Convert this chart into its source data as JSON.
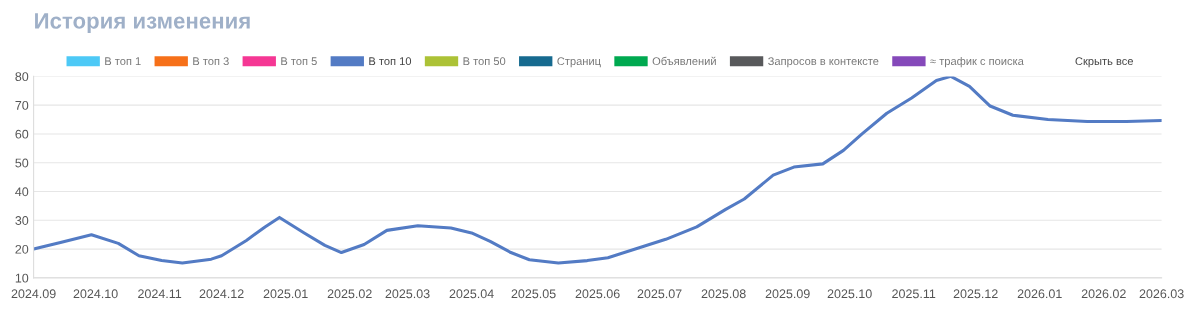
{
  "chart_data": {
    "type": "line",
    "title": "История изменения",
    "x": [
      "2024-09-01",
      "2024-09-14",
      "2024-09-29",
      "2024-10-12",
      "2024-10-22",
      "2024-11-02",
      "2024-11-12",
      "2024-11-26",
      "2024-12-01",
      "2024-12-13",
      "2024-12-22",
      "2024-12-29",
      "2025-01-10",
      "2025-01-20",
      "2025-01-28",
      "2025-02-08",
      "2025-02-19",
      "2025-03-06",
      "2025-03-22",
      "2025-04-01",
      "2025-04-10",
      "2025-04-20",
      "2025-04-29",
      "2025-05-13",
      "2025-05-27",
      "2025-06-06",
      "2025-06-20",
      "2025-07-04",
      "2025-07-19",
      "2025-08-02",
      "2025-08-11",
      "2025-08-25",
      "2025-09-04",
      "2025-09-18",
      "2025-09-28",
      "2025-10-07",
      "2025-10-19",
      "2025-10-31",
      "2025-11-12",
      "2025-11-19",
      "2025-11-28",
      "2025-12-08",
      "2025-12-19",
      "2026-01-05",
      "2026-01-24",
      "2026-02-12",
      "2026-03-01"
    ],
    "series": [
      {
        "name": "В топ 1",
        "color": "#4dc9f6",
        "values": [
          null,
          null,
          null,
          null,
          null,
          null,
          null,
          null,
          null,
          null,
          null,
          null,
          null,
          null,
          null,
          null,
          null,
          null,
          null,
          null,
          null,
          null,
          null,
          null,
          null,
          null,
          null,
          null,
          null,
          null,
          null,
          null,
          null,
          null,
          null,
          null,
          null,
          null,
          null,
          null,
          null,
          null,
          null,
          null,
          null,
          null,
          null
        ]
      },
      {
        "name": "В топ 3",
        "color": "#f67019",
        "values": [
          null,
          null,
          null,
          null,
          null,
          null,
          null,
          null,
          null,
          null,
          null,
          null,
          null,
          null,
          null,
          null,
          null,
          null,
          null,
          null,
          null,
          null,
          null,
          null,
          null,
          null,
          null,
          null,
          null,
          null,
          null,
          null,
          null,
          null,
          null,
          null,
          null,
          null,
          null,
          null,
          null,
          null,
          null,
          null,
          null,
          null,
          null
        ]
      },
      {
        "name": "В топ 5",
        "color": "#f53794",
        "values": [
          null,
          null,
          null,
          null,
          null,
          null,
          null,
          null,
          null,
          null,
          null,
          null,
          null,
          null,
          null,
          null,
          null,
          null,
          null,
          null,
          null,
          null,
          null,
          null,
          null,
          null,
          null,
          null,
          null,
          null,
          null,
          null,
          null,
          null,
          null,
          null,
          null,
          null,
          null,
          null,
          null,
          null,
          null,
          null,
          null,
          null,
          null
        ]
      },
      {
        "name": "В топ 10",
        "color": "#537bc4",
        "values": [
          20,
          22.3,
          25,
          22,
          17.7,
          16,
          15.2,
          16.5,
          17.7,
          23,
          27.7,
          31,
          25.6,
          21.3,
          18.8,
          21.6,
          26.5,
          28.1,
          27.3,
          25.6,
          22.7,
          18.8,
          16.3,
          15.2,
          16,
          17,
          20.2,
          23.4,
          27.7,
          33.8,
          37.4,
          45.7,
          48.5,
          49.6,
          54.3,
          60,
          67.2,
          72.5,
          78.6,
          80,
          76.5,
          69.7,
          66.5,
          65,
          64.3,
          64.3,
          64.7
        ]
      },
      {
        "name": "В топ 50",
        "color": "#acc236",
        "values": [
          null,
          null,
          null,
          null,
          null,
          null,
          null,
          null,
          null,
          null,
          null,
          null,
          null,
          null,
          null,
          null,
          null,
          null,
          null,
          null,
          null,
          null,
          null,
          null,
          null,
          null,
          null,
          null,
          null,
          null,
          null,
          null,
          null,
          null,
          null,
          null,
          null,
          null,
          null,
          null,
          null,
          null,
          null,
          null,
          null,
          null,
          null
        ]
      },
      {
        "name": "Страниц",
        "color": "#166a8f",
        "values": [
          null,
          null,
          null,
          null,
          null,
          null,
          null,
          null,
          null,
          null,
          null,
          null,
          null,
          null,
          null,
          null,
          null,
          null,
          null,
          null,
          null,
          null,
          null,
          null,
          null,
          null,
          null,
          null,
          null,
          null,
          null,
          null,
          null,
          null,
          null,
          null,
          null,
          null,
          null,
          null,
          null,
          null,
          null,
          null,
          null,
          null,
          null
        ]
      },
      {
        "name": "Объявлений",
        "color": "#00a950",
        "values": [
          null,
          null,
          null,
          null,
          null,
          null,
          null,
          null,
          null,
          null,
          null,
          null,
          null,
          null,
          null,
          null,
          null,
          null,
          null,
          null,
          null,
          null,
          null,
          null,
          null,
          null,
          null,
          null,
          null,
          null,
          null,
          null,
          null,
          null,
          null,
          null,
          null,
          null,
          null,
          null,
          null,
          null,
          null,
          null,
          null,
          null,
          null
        ]
      },
      {
        "name": "Запросов в контексте",
        "color": "#58595b",
        "values": [
          null,
          null,
          null,
          null,
          null,
          null,
          null,
          null,
          null,
          null,
          null,
          null,
          null,
          null,
          null,
          null,
          null,
          null,
          null,
          null,
          null,
          null,
          null,
          null,
          null,
          null,
          null,
          null,
          null,
          null,
          null,
          null,
          null,
          null,
          null,
          null,
          null,
          null,
          null,
          null,
          null,
          null,
          null,
          null,
          null,
          null,
          null
        ]
      },
      {
        "name": "≈ трафик с поиска",
        "color": "#8549ba",
        "values": [
          null,
          null,
          null,
          null,
          null,
          null,
          null,
          null,
          null,
          null,
          null,
          null,
          null,
          null,
          null,
          null,
          null,
          null,
          null,
          null,
          null,
          null,
          null,
          null,
          null,
          null,
          null,
          null,
          null,
          null,
          null,
          null,
          null,
          null,
          null,
          null,
          null,
          null,
          null,
          null,
          null,
          null,
          null,
          null,
          null,
          null,
          null
        ]
      }
    ],
    "annotations": [
      "Скрыть все"
    ],
    "xlim": [
      "2024-09-01",
      "2026-03-01"
    ],
    "xticks": [
      {
        "value": "2024-09",
        "label": "2024.09"
      },
      {
        "value": "2024-10",
        "label": "2024.10"
      },
      {
        "value": "2024-11",
        "label": "2024.11"
      },
      {
        "value": "2024-12",
        "label": "2024.12"
      },
      {
        "value": "2025-01",
        "label": "2025.01"
      },
      {
        "value": "2025-02",
        "label": "2025.02"
      },
      {
        "value": "2025-03",
        "label": "2025.03"
      },
      {
        "value": "2025-04",
        "label": "2025.04"
      },
      {
        "value": "2025-05",
        "label": "2025.05"
      },
      {
        "value": "2025-06",
        "label": "2025.06"
      },
      {
        "value": "2025-07",
        "label": "2025.07"
      },
      {
        "value": "2025-08",
        "label": "2025.08"
      },
      {
        "value": "2025-09",
        "label": "2025.09"
      },
      {
        "value": "2025-10",
        "label": "2025.10"
      },
      {
        "value": "2025-11",
        "label": "2025.11"
      },
      {
        "value": "2025-12",
        "label": "2025.12"
      },
      {
        "value": "2026-01",
        "label": "2026.01"
      },
      {
        "value": "2026-02",
        "label": "2026.02"
      },
      {
        "value": "2026-03",
        "label": "2026.03"
      }
    ],
    "ylim": [
      10,
      80
    ],
    "yticks": [
      10,
      20,
      30,
      40,
      50,
      60,
      70,
      80
    ],
    "grid": "y",
    "legend": "top",
    "marker": "none",
    "line_style": "solid"
  }
}
